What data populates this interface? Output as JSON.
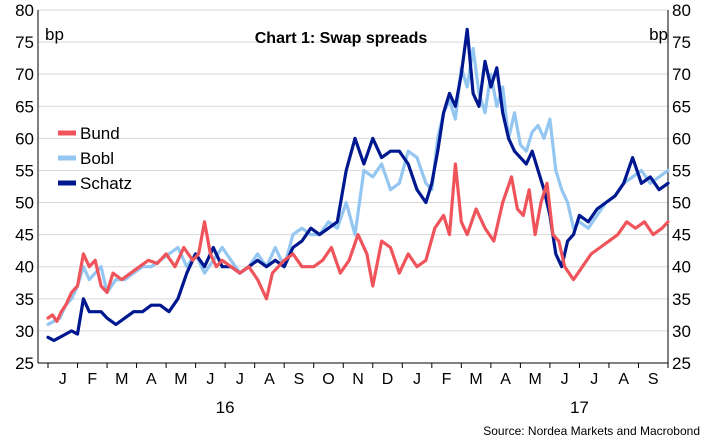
{
  "chart_data": {
    "type": "line",
    "title": "Chart 1: Swap spreads",
    "ylabel_left": "bp",
    "ylabel_right": "bp",
    "ylim": [
      25,
      80
    ],
    "yticks": [
      25,
      30,
      35,
      40,
      45,
      50,
      55,
      60,
      65,
      70,
      75,
      80
    ],
    "month_labels": [
      "J",
      "F",
      "M",
      "A",
      "M",
      "J",
      "J",
      "A",
      "S",
      "O",
      "N",
      "D",
      "J",
      "F",
      "M",
      "A",
      "M",
      "J",
      "J",
      "A",
      "S"
    ],
    "year_labels": [
      {
        "label": "16",
        "month_index": 6
      },
      {
        "label": "17",
        "month_index": 18
      }
    ],
    "legend_placement": "left-middle",
    "grid": true,
    "source": "Source: Nordea Markets and Macrobond",
    "x_unit": "month",
    "x_start": "2016-01",
    "series": [
      {
        "name": "Bund",
        "color": "#f0545b",
        "x": [
          0,
          0.15,
          0.3,
          0.45,
          0.6,
          0.8,
          1.0,
          1.2,
          1.4,
          1.6,
          1.8,
          2.0,
          2.2,
          2.5,
          2.8,
          3.1,
          3.4,
          3.7,
          4.0,
          4.3,
          4.6,
          4.9,
          5.1,
          5.3,
          5.5,
          5.7,
          5.9,
          6.2,
          6.5,
          6.8,
          7.1,
          7.4,
          7.6,
          7.8,
          8.0,
          8.3,
          8.6,
          9.0,
          9.3,
          9.6,
          9.9,
          10.2,
          10.5,
          10.8,
          11.0,
          11.3,
          11.6,
          11.9,
          12.2,
          12.5,
          12.8,
          13.1,
          13.4,
          13.6,
          13.8,
          14.0,
          14.2,
          14.5,
          14.8,
          15.1,
          15.4,
          15.7,
          15.9,
          16.1,
          16.3,
          16.5,
          16.7,
          16.9,
          17.1,
          17.3,
          17.5,
          17.8,
          18.1,
          18.4,
          18.7,
          19.0,
          19.3,
          19.6,
          19.9,
          20.2,
          20.5,
          20.8,
          21.0
        ],
        "values": [
          32,
          32.5,
          31.5,
          33,
          34,
          36,
          37,
          42,
          40,
          41,
          37,
          36,
          39,
          38,
          39,
          40,
          41,
          40.5,
          42,
          40,
          43,
          41,
          42,
          47,
          42,
          40,
          41,
          40,
          39,
          40,
          38,
          35,
          39,
          40,
          41,
          42,
          40,
          40,
          41,
          43,
          39,
          41,
          45,
          42,
          37,
          44,
          43,
          39,
          42,
          40,
          41,
          46,
          48,
          45,
          56,
          47,
          45,
          49,
          46,
          44,
          50,
          54,
          49,
          48,
          52,
          45,
          50,
          53,
          45,
          44,
          40,
          38,
          40,
          42,
          43,
          44,
          45,
          47,
          46,
          47,
          45,
          46,
          47
        ]
      },
      {
        "name": "Bobl",
        "color": "#94c6f2",
        "x": [
          0,
          0.2,
          0.4,
          0.6,
          0.8,
          1.0,
          1.2,
          1.4,
          1.6,
          1.8,
          2.0,
          2.3,
          2.6,
          2.9,
          3.2,
          3.5,
          3.8,
          4.1,
          4.4,
          4.7,
          5.0,
          5.3,
          5.6,
          5.9,
          6.2,
          6.5,
          6.8,
          7.1,
          7.4,
          7.7,
          8.0,
          8.3,
          8.6,
          8.9,
          9.2,
          9.5,
          9.8,
          10.1,
          10.4,
          10.7,
          11.0,
          11.3,
          11.6,
          11.9,
          12.2,
          12.5,
          12.8,
          13.0,
          13.2,
          13.4,
          13.6,
          13.8,
          14.0,
          14.2,
          14.4,
          14.6,
          14.8,
          15.0,
          15.2,
          15.4,
          15.6,
          15.8,
          16.0,
          16.2,
          16.4,
          16.6,
          16.8,
          17.0,
          17.2,
          17.4,
          17.6,
          17.8,
          18.0,
          18.3,
          18.6,
          18.9,
          19.2,
          19.5,
          19.8,
          20.1,
          20.4,
          20.7,
          21.0
        ],
        "values": [
          31,
          31.5,
          32,
          34,
          35,
          37,
          40,
          38,
          39,
          40,
          36,
          38,
          38,
          39,
          40,
          40,
          41,
          42,
          43,
          40,
          42,
          39,
          41,
          43,
          41,
          39,
          40,
          42,
          40,
          43,
          40,
          45,
          46,
          45,
          45,
          47,
          46,
          50,
          45,
          55,
          54,
          56,
          52,
          53,
          58,
          57,
          53,
          52,
          60,
          64,
          66,
          63,
          71,
          68,
          74,
          67,
          64,
          70,
          65,
          68,
          60,
          64,
          59,
          58,
          61,
          62,
          60,
          63,
          55,
          52,
          50,
          46,
          47,
          46,
          48,
          50,
          51,
          53,
          54,
          55,
          53,
          54,
          55
        ]
      },
      {
        "name": "Schatz",
        "color": "#00188f",
        "x": [
          0,
          0.2,
          0.4,
          0.6,
          0.8,
          1.0,
          1.2,
          1.4,
          1.6,
          1.8,
          2.0,
          2.3,
          2.6,
          2.9,
          3.2,
          3.5,
          3.8,
          4.1,
          4.4,
          4.7,
          5.0,
          5.3,
          5.6,
          5.9,
          6.2,
          6.5,
          6.8,
          7.1,
          7.4,
          7.7,
          8.0,
          8.3,
          8.6,
          8.9,
          9.2,
          9.5,
          9.8,
          10.1,
          10.4,
          10.7,
          11.0,
          11.3,
          11.6,
          11.9,
          12.2,
          12.5,
          12.8,
          13.0,
          13.2,
          13.4,
          13.6,
          13.8,
          14.0,
          14.2,
          14.4,
          14.6,
          14.8,
          15.0,
          15.2,
          15.4,
          15.6,
          15.8,
          16.0,
          16.2,
          16.4,
          16.6,
          16.8,
          17.0,
          17.2,
          17.4,
          17.6,
          17.8,
          18.0,
          18.3,
          18.6,
          18.9,
          19.2,
          19.5,
          19.8,
          20.1,
          20.4,
          20.7,
          21.0
        ],
        "values": [
          29,
          28.5,
          29,
          29.5,
          30,
          29.5,
          35,
          33,
          33,
          33,
          32,
          31,
          32,
          33,
          33,
          34,
          34,
          33,
          35,
          39,
          42,
          40,
          43,
          40,
          40,
          39,
          40,
          41,
          40,
          41,
          40,
          43,
          44,
          46,
          45,
          46,
          47,
          55,
          60,
          56,
          60,
          57,
          58,
          58,
          56,
          52,
          50,
          53,
          58,
          64,
          67,
          65,
          70,
          77,
          67,
          65,
          72,
          68,
          71,
          64,
          60,
          58,
          57,
          56,
          58,
          55,
          52,
          48,
          42,
          40,
          44,
          45,
          48,
          47,
          49,
          50,
          51,
          53,
          57,
          53,
          54,
          52,
          53
        ]
      }
    ]
  }
}
